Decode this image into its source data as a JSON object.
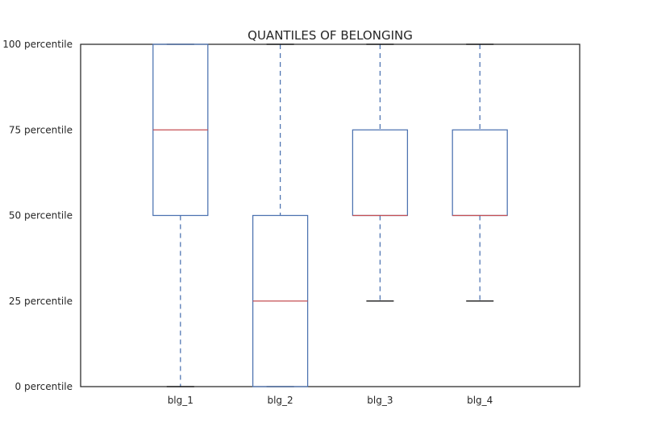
{
  "chart_data": {
    "type": "box",
    "title": "QUANTILES OF BELONGING",
    "xlabel": "",
    "ylabel": "",
    "ylim": [
      0,
      100
    ],
    "yticks": [
      {
        "value": 0,
        "label": "0 percentile"
      },
      {
        "value": 25,
        "label": "25 percentile"
      },
      {
        "value": 50,
        "label": "50 percentile"
      },
      {
        "value": 75,
        "label": "75 percentile"
      },
      {
        "value": 100,
        "label": "100 percentile"
      }
    ],
    "categories": [
      "blg_1",
      "blg_2",
      "blg_3",
      "blg_4"
    ],
    "boxes": [
      {
        "name": "blg_1",
        "whisker_low": 0,
        "q1": 50,
        "median": 75,
        "q3": 100,
        "whisker_high": 100
      },
      {
        "name": "blg_2",
        "whisker_low": 0,
        "q1": 0,
        "median": 25,
        "q3": 50,
        "whisker_high": 100
      },
      {
        "name": "blg_3",
        "whisker_low": 25,
        "q1": 50,
        "median": 50,
        "q3": 75,
        "whisker_high": 100
      },
      {
        "name": "blg_4",
        "whisker_low": 25,
        "q1": 50,
        "median": 50,
        "q3": 75,
        "whisker_high": 100
      }
    ],
    "grid": false,
    "colors": {
      "box": "#4c72b0",
      "whisker": "#4c72b0",
      "median": "#c44e52",
      "cap": "#000000",
      "axes": "#262626"
    }
  }
}
